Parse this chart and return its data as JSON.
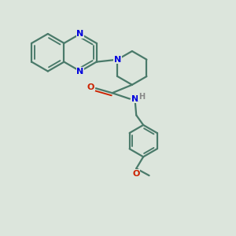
{
  "background_color": "#dce5dc",
  "bond_color": "#4a7a6a",
  "nitrogen_color": "#0000dd",
  "oxygen_color": "#cc2200",
  "hydrogen_color": "#888888",
  "bond_width": 1.6,
  "figsize": [
    3.0,
    3.0
  ],
  "dpi": 100,
  "xlim": [
    0,
    10
  ],
  "ylim": [
    0,
    10
  ]
}
